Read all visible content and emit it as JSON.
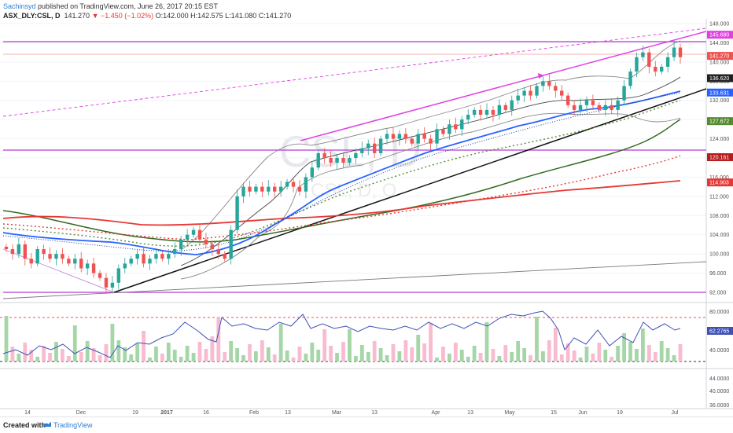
{
  "header": {
    "author": "Sachinsyd",
    "published": "published on TradingView.com, June 26, 2017 20:15 EST",
    "symbol": "ASX_DLY:CSL, D",
    "last": "141.270",
    "change": "−1.450 (−1.02%)",
    "ohlc": "O:142.000 H:142.575 L:141.080 C:141.270"
  },
  "watermark": {
    "line1": "CSL, D",
    "line2": "CSL, D, O"
  },
  "footer": {
    "created_label": "Created with",
    "brand": "TradingView"
  },
  "colors": {
    "up": "#26a69a",
    "down": "#ef5350",
    "magenta": "#e040e0",
    "blue": "#2962ff",
    "green": "#33691e",
    "red": "#e53935",
    "purple": "#9c27b0"
  },
  "chart_data": {
    "type": "candlestick",
    "symbol": "ASX_DLY:CSL",
    "interval": "D",
    "y_axis_ticks": [
      "148.000",
      "144.000",
      "140.000",
      "136.000",
      "132.000",
      "128.000",
      "124.000",
      "120.000",
      "116.000",
      "112.000",
      "108.000",
      "104.000",
      "100.000",
      "96.000",
      "92.000"
    ],
    "ylim": [
      90,
      149
    ],
    "x_axis_ticks": [
      "14",
      "Dec",
      "19",
      "2017",
      "16",
      "Feb",
      "13",
      "Mar",
      "13",
      "Apr",
      "13",
      "May",
      "15",
      "Jun",
      "19",
      "Jul"
    ],
    "price_tags": [
      {
        "value": "145.680",
        "color": "#e040e0",
        "price": 145.68
      },
      {
        "value": "141.270",
        "color": "#ef5350",
        "price": 141.27
      },
      {
        "value": "136.620",
        "color": "#222222",
        "price": 136.62
      },
      {
        "value": "133.631",
        "color": "#2962ff",
        "price": 133.63
      },
      {
        "value": "127.672",
        "color": "#558b2f",
        "price": 127.67
      },
      {
        "value": "120.161",
        "color": "#b71c1c",
        "price": 120.16
      },
      {
        "value": "114.903",
        "color": "#e53935",
        "price": 114.9
      }
    ],
    "horizontal_levels": [
      145.68,
      120.7,
      91.6
    ],
    "close": [
      101,
      100,
      102,
      99,
      98,
      101,
      100,
      99,
      100,
      99,
      98,
      99,
      97,
      98,
      96,
      95,
      93,
      94,
      97,
      98,
      99,
      100,
      98,
      99,
      100,
      99,
      100,
      101,
      103,
      104,
      105,
      103,
      102,
      101,
      100,
      99,
      105,
      112,
      114,
      113,
      114,
      113,
      114,
      113,
      114,
      115,
      114,
      113,
      116,
      118,
      121,
      120,
      119,
      120,
      119,
      120,
      121,
      122,
      123,
      121,
      124,
      125,
      124,
      125,
      124,
      123,
      125,
      124,
      123,
      126,
      125,
      127,
      126,
      128,
      129,
      130,
      129,
      130,
      129,
      131,
      130,
      132,
      133,
      134,
      133,
      135,
      136,
      135,
      134,
      133,
      131,
      130,
      131,
      132,
      131,
      130,
      131,
      130,
      132,
      135,
      138,
      141,
      142,
      139,
      138,
      139,
      141,
      143,
      141
    ]
  },
  "oscillator": {
    "ticks": [
      "80.0000",
      "40.0000"
    ],
    "value_tag": "62.2765"
  },
  "volume_axis": {
    "ticks": [
      "44.0000",
      "40.0000",
      "36.0000"
    ]
  }
}
